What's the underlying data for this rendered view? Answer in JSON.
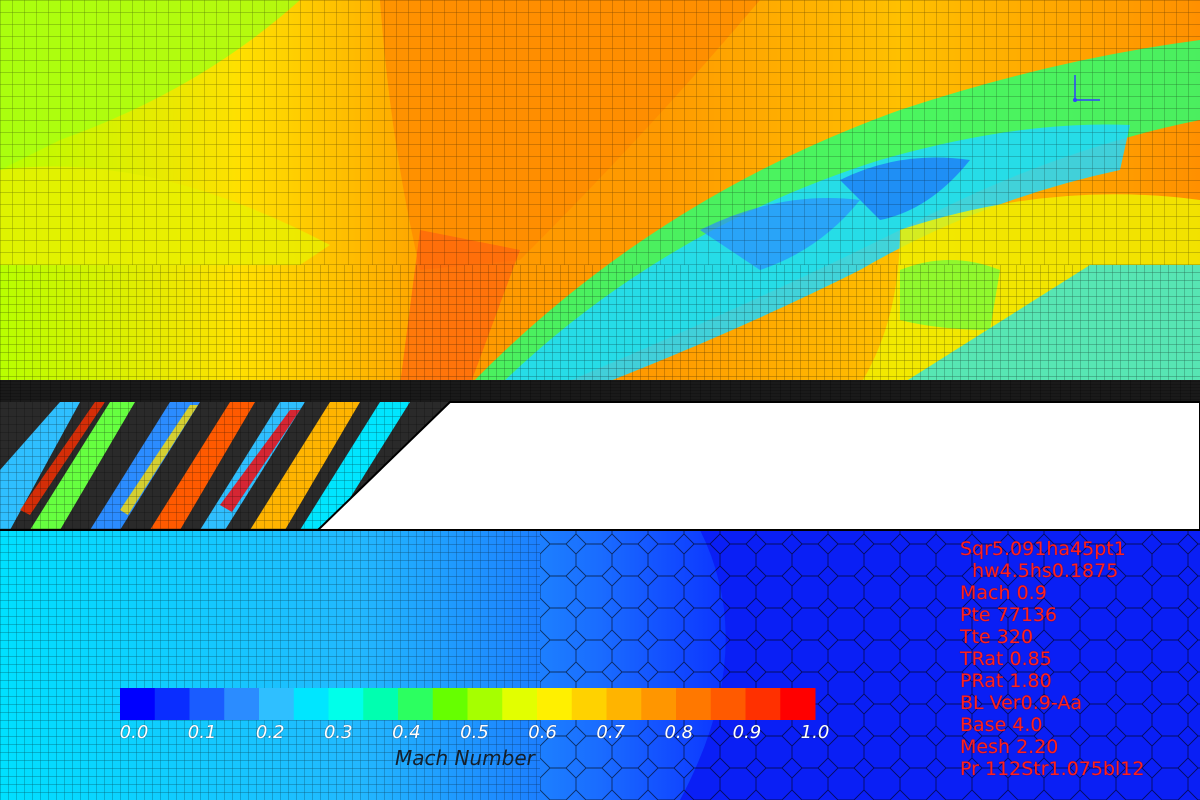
{
  "colorbar": {
    "title": "Mach Number",
    "min": 0.0,
    "max": 1.0,
    "ticks": [
      "0.0",
      "0.1",
      "0.2",
      "0.3",
      "0.4",
      "0.5",
      "0.6",
      "0.7",
      "0.8",
      "0.9",
      "1.0"
    ],
    "colors": [
      "#0000ff",
      "#0a2dff",
      "#1a5cff",
      "#2b8cff",
      "#2fbfff",
      "#00e6ff",
      "#00ffea",
      "#00ffb0",
      "#2cff60",
      "#66ff00",
      "#a6ff00",
      "#e2ff00",
      "#fff000",
      "#ffd200",
      "#ffb400",
      "#ff9600",
      "#ff7800",
      "#ff5a00",
      "#ff3000",
      "#ff0000"
    ]
  },
  "params": [
    "Sqr5.091ha45pt1",
    "  hw4.5hs0.1875",
    "Mach 0.9",
    "Pte 77136",
    "Tte 320",
    "TRat 0.85",
    "PRat 1.80",
    "BL Ver0.9-Aa",
    "Base 4.0",
    "Mesh 2.20",
    "Pr 112Str1.075bl12"
  ],
  "colors": {
    "param_text": "#ff2020",
    "mesh_line": "#000000",
    "solid_body": "#ffffff"
  }
}
